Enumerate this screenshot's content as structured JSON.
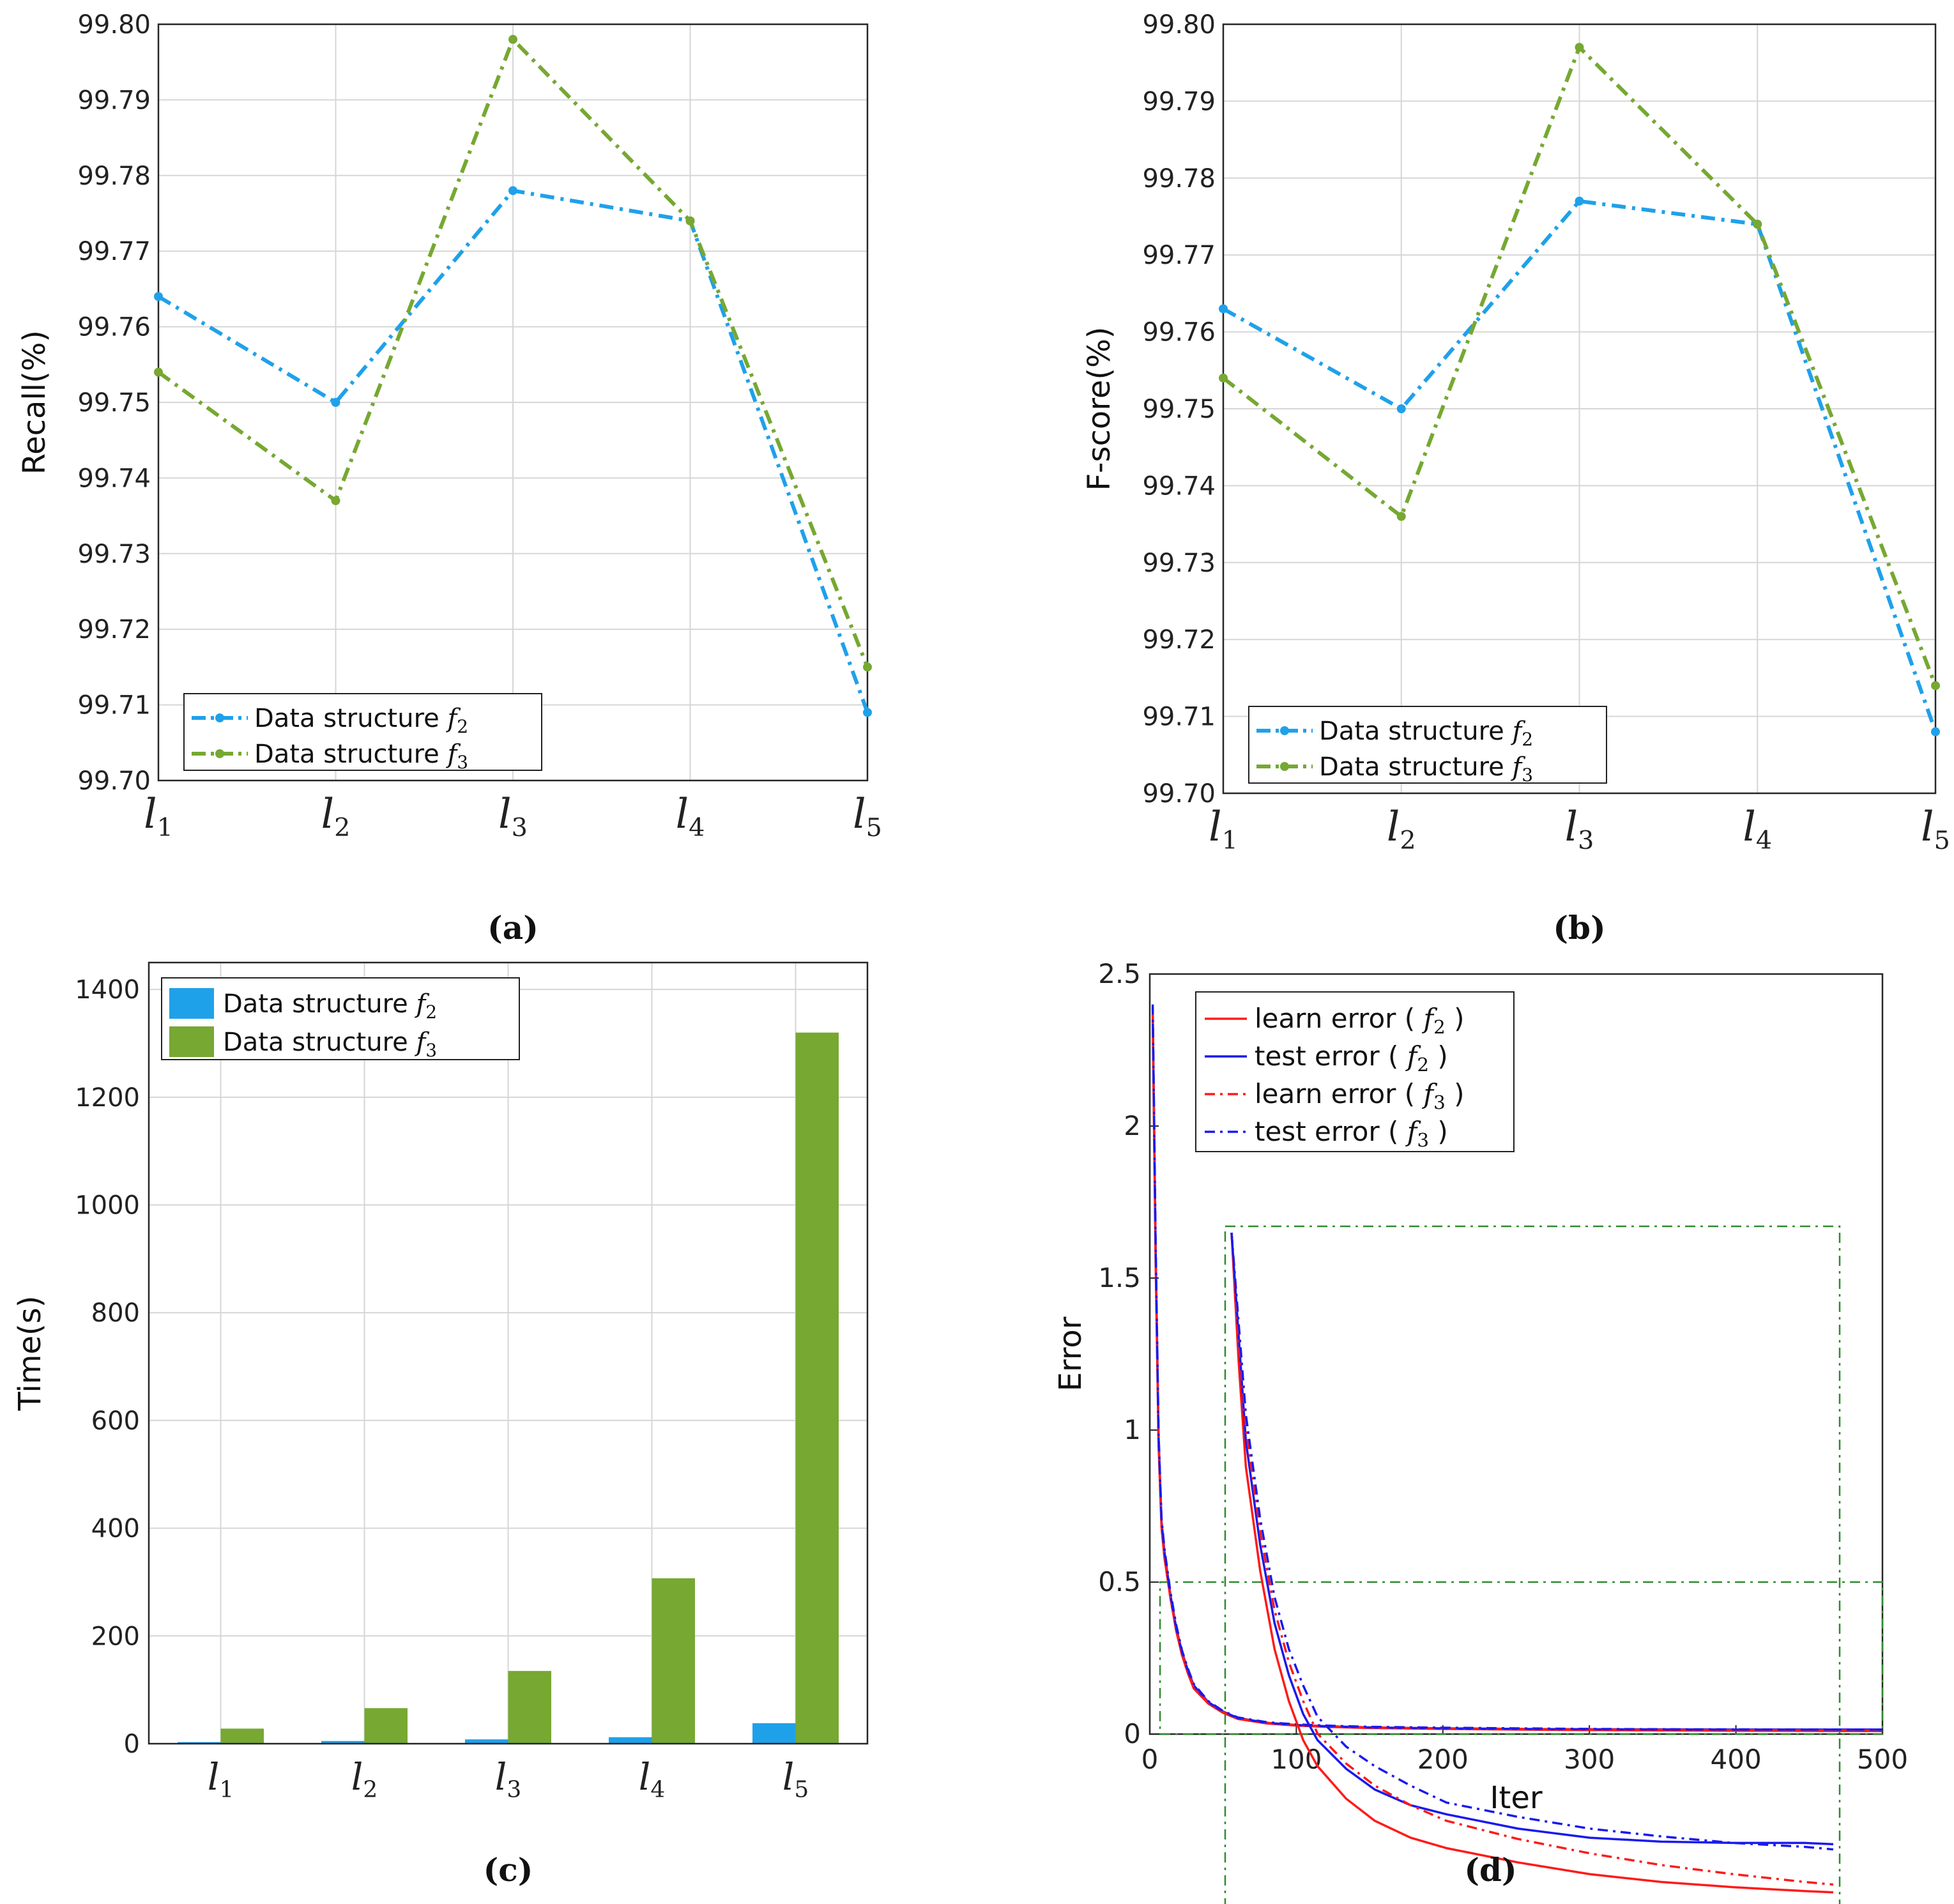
{
  "colors": {
    "f2": "#1fa1ea",
    "f3": "#76a832",
    "learn": "#ff1a1a",
    "test": "#1a1aee",
    "zoom_box": "#2e8b2e",
    "grid": "#d6d6d6",
    "axis": "#262626"
  },
  "chart_data": [
    {
      "id": "a",
      "caption": "(a)",
      "type": "line",
      "categories": [
        "l1",
        "l2",
        "l3",
        "l4",
        "l5"
      ],
      "ylabel": "Recall(%)",
      "ylim": [
        99.7,
        99.8
      ],
      "yticks": [
        "99.70",
        "99.71",
        "99.72",
        "99.73",
        "99.74",
        "99.75",
        "99.76",
        "99.77",
        "99.78",
        "99.79",
        "99.80"
      ],
      "grid": true,
      "legend_position": "bottom-left",
      "series": [
        {
          "name": "Data structure f2",
          "label": "Data structure ",
          "sub": "2",
          "color": "f2",
          "values": [
            99.764,
            99.75,
            99.778,
            99.774,
            99.709
          ]
        },
        {
          "name": "Data structure f3",
          "label": "Data structure ",
          "sub": "3",
          "color": "f3",
          "values": [
            99.754,
            99.737,
            99.798,
            99.774,
            99.715
          ]
        }
      ]
    },
    {
      "id": "b",
      "caption": "(b)",
      "type": "line",
      "categories": [
        "l1",
        "l2",
        "l3",
        "l4",
        "l5"
      ],
      "ylabel": "F-score(%)",
      "ylim": [
        99.7,
        99.8
      ],
      "yticks": [
        "99.70",
        "99.71",
        "99.72",
        "99.73",
        "99.74",
        "99.75",
        "99.76",
        "99.77",
        "99.78",
        "99.79",
        "99.80"
      ],
      "grid": true,
      "legend_position": "bottom-left",
      "series": [
        {
          "name": "Data structure f2",
          "label": "Data structure ",
          "sub": "2",
          "color": "f2",
          "values": [
            99.763,
            99.75,
            99.777,
            99.774,
            99.708
          ]
        },
        {
          "name": "Data structure f3",
          "label": "Data structure ",
          "sub": "3",
          "color": "f3",
          "values": [
            99.754,
            99.736,
            99.797,
            99.774,
            99.714
          ]
        }
      ]
    },
    {
      "id": "c",
      "caption": "(c)",
      "type": "bar",
      "categories": [
        "l1",
        "l2",
        "l3",
        "l4",
        "l5"
      ],
      "ylabel": "Time(s)",
      "ylim": [
        0,
        1450
      ],
      "yticks": [
        "0",
        "200",
        "400",
        "600",
        "800",
        "1000",
        "1200",
        "1400"
      ],
      "grid": true,
      "legend_position": "top-left",
      "series": [
        {
          "name": "Data structure f2",
          "label": "Data structure ",
          "sub": "2",
          "color": "f2",
          "values": [
            3,
            5,
            8,
            12,
            38
          ]
        },
        {
          "name": "Data structure f3",
          "label": "Data structure ",
          "sub": "3",
          "color": "f3",
          "values": [
            28,
            66,
            135,
            307,
            1320
          ]
        }
      ]
    },
    {
      "id": "d",
      "caption": "(d)",
      "type": "line",
      "xlabel": "Iter",
      "ylabel": "Error",
      "xlim": [
        0,
        500
      ],
      "ylim": [
        0,
        2.5
      ],
      "xticks": [
        "0",
        "100",
        "200",
        "300",
        "400",
        "500"
      ],
      "yticks": [
        "0",
        "0.5",
        "1",
        "1.5",
        "2",
        "2.5"
      ],
      "grid": false,
      "legend_position": "top-left",
      "legend": [
        {
          "label": "learn error ( ",
          "sub": "2",
          "close": " )",
          "color": "learn",
          "dash": "solid"
        },
        {
          "label": "test error   ( ",
          "sub": "2",
          "close": " )",
          "color": "test",
          "dash": "solid"
        },
        {
          "label": "learn error ( ",
          "sub": "3",
          "close": " )",
          "color": "learn",
          "dash": "dashdot"
        },
        {
          "label": "test error   ( ",
          "sub": "3",
          "close": " )",
          "color": "test",
          "dash": "dashdot"
        }
      ],
      "zoom_region": {
        "x": [
          7,
          500
        ],
        "y": [
          0,
          0.5
        ]
      },
      "series": [
        {
          "name": "learn error (f2)",
          "color": "learn",
          "dash": "solid",
          "x": [
            2,
            4,
            6,
            8,
            10,
            14,
            18,
            22,
            26,
            30,
            40,
            50,
            60,
            80,
            100,
            120,
            150,
            200,
            250,
            300,
            350,
            400,
            450,
            500
          ],
          "y": [
            2.35,
            1.55,
            0.95,
            0.68,
            0.58,
            0.45,
            0.34,
            0.26,
            0.2,
            0.15,
            0.1,
            0.07,
            0.05,
            0.035,
            0.028,
            0.024,
            0.02,
            0.017,
            0.015,
            0.013,
            0.012,
            0.011,
            0.0105,
            0.01
          ]
        },
        {
          "name": "test error (f2)",
          "color": "test",
          "dash": "solid",
          "x": [
            2,
            4,
            6,
            8,
            10,
            14,
            18,
            22,
            26,
            30,
            40,
            50,
            60,
            80,
            100,
            120,
            150,
            200,
            250,
            300,
            350,
            400,
            450,
            500
          ],
          "y": [
            2.39,
            1.6,
            0.98,
            0.7,
            0.6,
            0.46,
            0.35,
            0.27,
            0.21,
            0.16,
            0.105,
            0.074,
            0.053,
            0.037,
            0.03,
            0.026,
            0.022,
            0.019,
            0.017,
            0.016,
            0.0155,
            0.015,
            0.015,
            0.015
          ]
        },
        {
          "name": "learn error (f3)",
          "color": "learn",
          "dash": "dashdot",
          "x": [
            2,
            4,
            6,
            8,
            10,
            14,
            18,
            22,
            26,
            30,
            40,
            50,
            60,
            80,
            100,
            120,
            150,
            200,
            250,
            300,
            350,
            400,
            450,
            500
          ],
          "y": [
            2.37,
            1.58,
            0.97,
            0.69,
            0.59,
            0.455,
            0.345,
            0.265,
            0.205,
            0.155,
            0.103,
            0.072,
            0.052,
            0.037,
            0.03,
            0.026,
            0.022,
            0.019,
            0.017,
            0.015,
            0.014,
            0.013,
            0.0125,
            0.012
          ]
        },
        {
          "name": "test error (f3)",
          "color": "test",
          "dash": "dashdot",
          "x": [
            2,
            4,
            6,
            8,
            10,
            14,
            18,
            22,
            26,
            30,
            40,
            50,
            60,
            80,
            100,
            120,
            150,
            200,
            250,
            300,
            350,
            400,
            450,
            500
          ],
          "y": [
            2.4,
            1.62,
            0.99,
            0.71,
            0.61,
            0.47,
            0.36,
            0.275,
            0.215,
            0.165,
            0.108,
            0.076,
            0.055,
            0.039,
            0.032,
            0.028,
            0.024,
            0.021,
            0.019,
            0.017,
            0.016,
            0.0155,
            0.015,
            0.0145
          ]
        }
      ],
      "inset": {
        "description_free": true,
        "x": [
          50,
          470
        ],
        "y": [
          0.006,
          0.06
        ],
        "series": [
          {
            "name": "learn error (f2)",
            "color": "learn",
            "dash": "solid",
            "x": [
              50,
              55,
              60,
              70,
              80,
              90,
              100,
              110,
              130,
              150,
              175,
              200,
              250,
              300,
              350,
              400,
              450,
              470
            ],
            "y": [
              0.06,
              0.05,
              0.042,
              0.034,
              0.028,
              0.024,
              0.021,
              0.019,
              0.0165,
              0.0148,
              0.0135,
              0.0127,
              0.0116,
              0.0107,
              0.0101,
              0.0097,
              0.0094,
              0.0093
            ]
          },
          {
            "name": "test error (f2)",
            "color": "test",
            "dash": "solid",
            "x": [
              50,
              55,
              60,
              70,
              80,
              90,
              100,
              110,
              130,
              150,
              175,
              200,
              250,
              300,
              350,
              400,
              450,
              470
            ],
            "y": [
              0.06,
              0.052,
              0.044,
              0.036,
              0.03,
              0.026,
              0.023,
              0.021,
              0.0188,
              0.0172,
              0.016,
              0.0153,
              0.0142,
              0.0135,
              0.0132,
              0.0131,
              0.0131,
              0.013
            ]
          },
          {
            "name": "learn error (f3)",
            "color": "learn",
            "dash": "dashdot",
            "x": [
              50,
              55,
              60,
              70,
              80,
              90,
              100,
              110,
              130,
              150,
              175,
              200,
              250,
              300,
              350,
              400,
              450,
              470
            ],
            "y": [
              0.06,
              0.052,
              0.045,
              0.037,
              0.031,
              0.027,
              0.024,
              0.0215,
              0.0192,
              0.0175,
              0.016,
              0.0148,
              0.0134,
              0.0123,
              0.0114,
              0.0107,
              0.0101,
              0.0099
            ]
          },
          {
            "name": "test error (f3)",
            "color": "test",
            "dash": "dashdot",
            "x": [
              50,
              55,
              60,
              70,
              80,
              90,
              100,
              110,
              130,
              150,
              175,
              200,
              250,
              300,
              350,
              400,
              450,
              470
            ],
            "y": [
              0.06,
              0.053,
              0.046,
              0.038,
              0.032,
              0.028,
              0.0252,
              0.0228,
              0.0205,
              0.019,
              0.0175,
              0.0162,
              0.0151,
              0.0142,
              0.0136,
              0.0131,
              0.0128,
              0.0126
            ]
          }
        ]
      }
    }
  ]
}
